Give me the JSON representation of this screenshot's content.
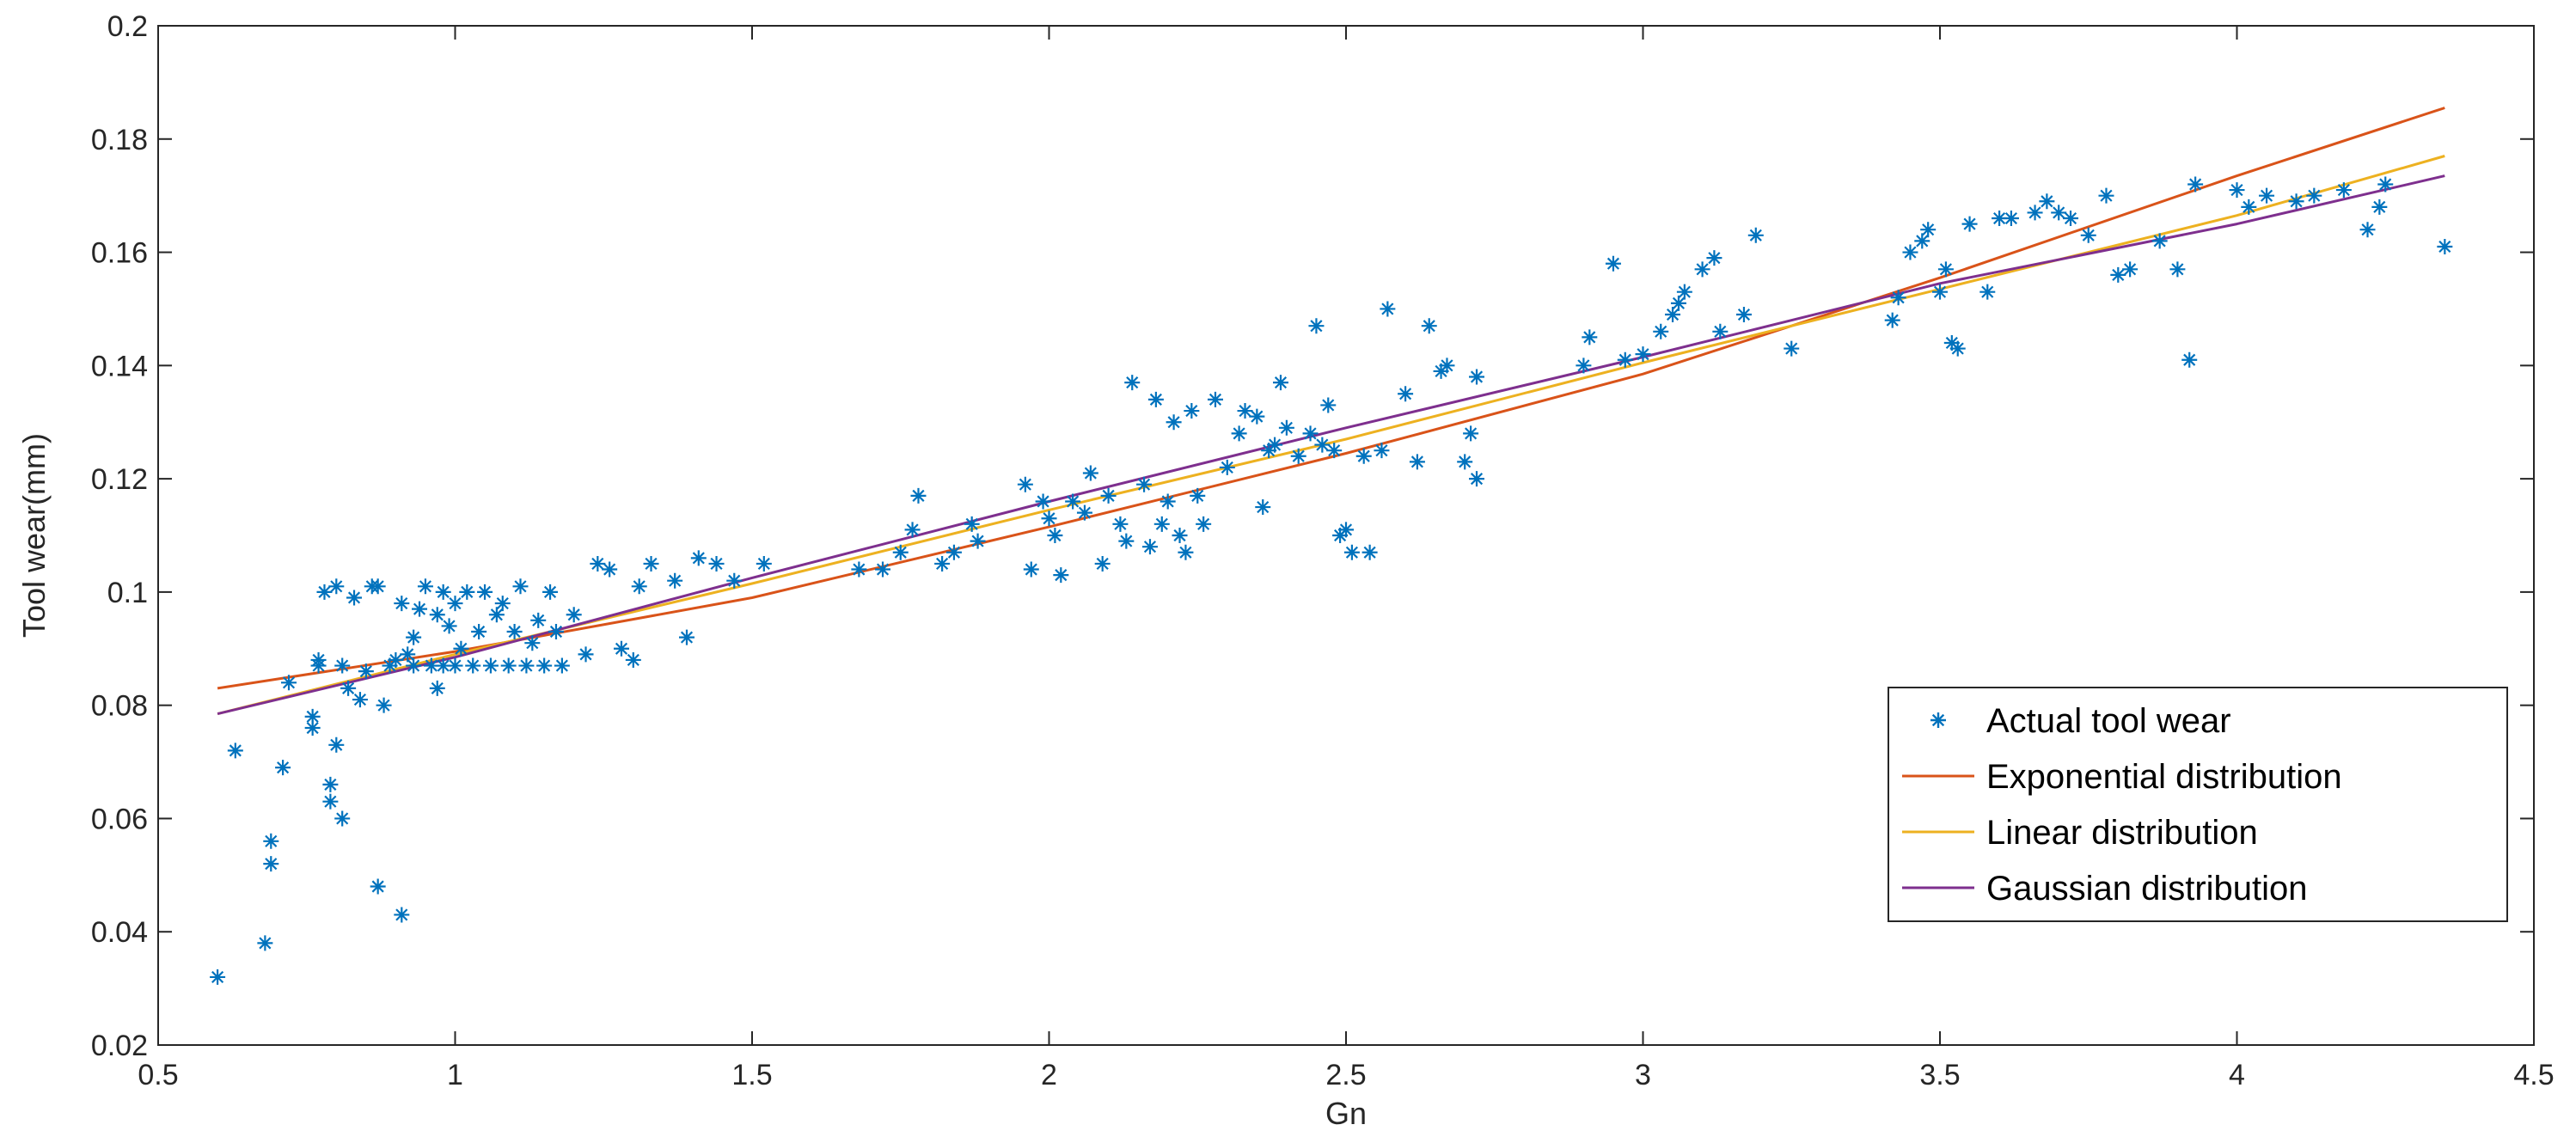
{
  "chart_data": {
    "type": "scatter",
    "title": "",
    "xlabel": "Gn",
    "ylabel": "Tool wear(mm)",
    "xlim": [
      0.5,
      4.5
    ],
    "ylim": [
      0.02,
      0.2
    ],
    "xticks": [
      "0.5",
      "1",
      "1.5",
      "2",
      "2.5",
      "3",
      "3.5",
      "4",
      "4.5"
    ],
    "yticks": [
      "0.02",
      "0.04",
      "0.06",
      "0.08",
      "0.1",
      "0.12",
      "0.14",
      "0.16",
      "0.18",
      "0.2"
    ],
    "grid": false,
    "legend_position": "bottom-right",
    "colors": {
      "actual": "#0072BD",
      "exponential": "#D95319",
      "linear": "#EDB120",
      "gaussian": "#7E2F8E",
      "axes": "#262626"
    },
    "series": [
      {
        "name": "Actual tool wear",
        "kind": "scatter",
        "marker": "star",
        "points": [
          [
            0.6,
            0.032
          ],
          [
            0.63,
            0.072
          ],
          [
            0.68,
            0.038
          ],
          [
            0.69,
            0.052
          ],
          [
            0.69,
            0.056
          ],
          [
            0.71,
            0.069
          ],
          [
            0.72,
            0.084
          ],
          [
            0.76,
            0.076
          ],
          [
            0.76,
            0.078
          ],
          [
            0.77,
            0.087
          ],
          [
            0.77,
            0.088
          ],
          [
            0.78,
            0.1
          ],
          [
            0.79,
            0.063
          ],
          [
            0.79,
            0.066
          ],
          [
            0.8,
            0.073
          ],
          [
            0.8,
            0.101
          ],
          [
            0.81,
            0.06
          ],
          [
            0.81,
            0.087
          ],
          [
            0.82,
            0.083
          ],
          [
            0.83,
            0.099
          ],
          [
            0.84,
            0.081
          ],
          [
            0.85,
            0.086
          ],
          [
            0.86,
            0.101
          ],
          [
            0.87,
            0.048
          ],
          [
            0.87,
            0.101
          ],
          [
            0.88,
            0.08
          ],
          [
            0.89,
            0.087
          ],
          [
            0.9,
            0.088
          ],
          [
            0.91,
            0.043
          ],
          [
            0.91,
            0.098
          ],
          [
            0.92,
            0.089
          ],
          [
            0.93,
            0.092
          ],
          [
            0.93,
            0.087
          ],
          [
            0.94,
            0.097
          ],
          [
            0.95,
            0.101
          ],
          [
            0.96,
            0.087
          ],
          [
            0.97,
            0.083
          ],
          [
            0.97,
            0.096
          ],
          [
            0.98,
            0.1
          ],
          [
            0.98,
            0.087
          ],
          [
            0.99,
            0.094
          ],
          [
            1.0,
            0.098
          ],
          [
            1.0,
            0.087
          ],
          [
            1.01,
            0.09
          ],
          [
            1.02,
            0.1
          ],
          [
            1.03,
            0.087
          ],
          [
            1.04,
            0.093
          ],
          [
            1.05,
            0.1
          ],
          [
            1.06,
            0.087
          ],
          [
            1.07,
            0.096
          ],
          [
            1.08,
            0.098
          ],
          [
            1.09,
            0.087
          ],
          [
            1.1,
            0.093
          ],
          [
            1.11,
            0.101
          ],
          [
            1.12,
            0.087
          ],
          [
            1.13,
            0.091
          ],
          [
            1.14,
            0.095
          ],
          [
            1.15,
            0.087
          ],
          [
            1.16,
            0.1
          ],
          [
            1.17,
            0.093
          ],
          [
            1.18,
            0.087
          ],
          [
            1.2,
            0.096
          ],
          [
            1.22,
            0.089
          ],
          [
            1.24,
            0.105
          ],
          [
            1.26,
            0.104
          ],
          [
            1.28,
            0.09
          ],
          [
            1.3,
            0.088
          ],
          [
            1.31,
            0.101
          ],
          [
            1.33,
            0.105
          ],
          [
            1.37,
            0.102
          ],
          [
            1.39,
            0.092
          ],
          [
            1.41,
            0.106
          ],
          [
            1.44,
            0.105
          ],
          [
            1.47,
            0.102
          ],
          [
            1.52,
            0.105
          ],
          [
            1.68,
            0.104
          ],
          [
            1.72,
            0.104
          ],
          [
            1.75,
            0.107
          ],
          [
            1.77,
            0.111
          ],
          [
            1.78,
            0.117
          ],
          [
            1.82,
            0.105
          ],
          [
            1.84,
            0.107
          ],
          [
            1.87,
            0.112
          ],
          [
            1.88,
            0.109
          ],
          [
            1.96,
            0.119
          ],
          [
            1.97,
            0.104
          ],
          [
            1.99,
            0.116
          ],
          [
            2.0,
            0.113
          ],
          [
            2.01,
            0.11
          ],
          [
            2.02,
            0.103
          ],
          [
            2.04,
            0.116
          ],
          [
            2.06,
            0.114
          ],
          [
            2.07,
            0.121
          ],
          [
            2.09,
            0.105
          ],
          [
            2.1,
            0.117
          ],
          [
            2.12,
            0.112
          ],
          [
            2.13,
            0.109
          ],
          [
            2.14,
            0.137
          ],
          [
            2.16,
            0.119
          ],
          [
            2.17,
            0.108
          ],
          [
            2.18,
            0.134
          ],
          [
            2.19,
            0.112
          ],
          [
            2.2,
            0.116
          ],
          [
            2.21,
            0.13
          ],
          [
            2.22,
            0.11
          ],
          [
            2.23,
            0.107
          ],
          [
            2.24,
            0.132
          ],
          [
            2.25,
            0.117
          ],
          [
            2.26,
            0.112
          ],
          [
            2.28,
            0.134
          ],
          [
            2.3,
            0.122
          ],
          [
            2.32,
            0.128
          ],
          [
            2.33,
            0.132
          ],
          [
            2.35,
            0.131
          ],
          [
            2.36,
            0.115
          ],
          [
            2.37,
            0.125
          ],
          [
            2.38,
            0.126
          ],
          [
            2.39,
            0.137
          ],
          [
            2.4,
            0.129
          ],
          [
            2.42,
            0.124
          ],
          [
            2.44,
            0.128
          ],
          [
            2.45,
            0.147
          ],
          [
            2.46,
            0.126
          ],
          [
            2.47,
            0.133
          ],
          [
            2.48,
            0.125
          ],
          [
            2.49,
            0.11
          ],
          [
            2.5,
            0.111
          ],
          [
            2.51,
            0.107
          ],
          [
            2.53,
            0.124
          ],
          [
            2.54,
            0.107
          ],
          [
            2.56,
            0.125
          ],
          [
            2.57,
            0.15
          ],
          [
            2.6,
            0.135
          ],
          [
            2.62,
            0.123
          ],
          [
            2.64,
            0.147
          ],
          [
            2.66,
            0.139
          ],
          [
            2.67,
            0.14
          ],
          [
            2.7,
            0.123
          ],
          [
            2.71,
            0.128
          ],
          [
            2.72,
            0.12
          ],
          [
            2.72,
            0.138
          ],
          [
            2.9,
            0.14
          ],
          [
            2.91,
            0.145
          ],
          [
            2.95,
            0.158
          ],
          [
            2.97,
            0.141
          ],
          [
            3.0,
            0.142
          ],
          [
            3.03,
            0.146
          ],
          [
            3.05,
            0.149
          ],
          [
            3.06,
            0.151
          ],
          [
            3.07,
            0.153
          ],
          [
            3.1,
            0.157
          ],
          [
            3.12,
            0.159
          ],
          [
            3.13,
            0.146
          ],
          [
            3.17,
            0.149
          ],
          [
            3.19,
            0.163
          ],
          [
            3.25,
            0.143
          ],
          [
            3.42,
            0.148
          ],
          [
            3.43,
            0.152
          ],
          [
            3.45,
            0.16
          ],
          [
            3.47,
            0.162
          ],
          [
            3.48,
            0.164
          ],
          [
            3.5,
            0.153
          ],
          [
            3.51,
            0.157
          ],
          [
            3.52,
            0.144
          ],
          [
            3.53,
            0.143
          ],
          [
            3.55,
            0.165
          ],
          [
            3.58,
            0.153
          ],
          [
            3.6,
            0.166
          ],
          [
            3.62,
            0.166
          ],
          [
            3.66,
            0.167
          ],
          [
            3.68,
            0.169
          ],
          [
            3.7,
            0.167
          ],
          [
            3.72,
            0.166
          ],
          [
            3.75,
            0.163
          ],
          [
            3.78,
            0.17
          ],
          [
            3.8,
            0.156
          ],
          [
            3.82,
            0.157
          ],
          [
            3.87,
            0.162
          ],
          [
            3.9,
            0.157
          ],
          [
            3.92,
            0.141
          ],
          [
            3.93,
            0.172
          ],
          [
            4.0,
            0.171
          ],
          [
            4.02,
            0.168
          ],
          [
            4.05,
            0.17
          ],
          [
            4.1,
            0.169
          ],
          [
            4.13,
            0.17
          ],
          [
            4.18,
            0.171
          ],
          [
            4.22,
            0.164
          ],
          [
            4.24,
            0.168
          ],
          [
            4.25,
            0.172
          ],
          [
            4.35,
            0.161
          ]
        ]
      },
      {
        "name": "Exponential distribution",
        "kind": "line",
        "x": [
          0.6,
          1.0,
          1.5,
          2.0,
          2.5,
          3.0,
          3.5,
          4.0,
          4.35
        ],
        "y": [
          0.083,
          0.0895,
          0.099,
          0.1115,
          0.1245,
          0.1385,
          0.1555,
          0.1735,
          0.1855
        ]
      },
      {
        "name": "Linear distribution",
        "kind": "line",
        "x": [
          0.6,
          1.0,
          1.5,
          2.0,
          2.5,
          3.0,
          3.5,
          4.0,
          4.35
        ],
        "y": [
          0.0785,
          0.089,
          0.1015,
          0.1145,
          0.127,
          0.1405,
          0.1535,
          0.1665,
          0.177
        ]
      },
      {
        "name": "Gaussian distribution",
        "kind": "line",
        "x": [
          0.6,
          1.0,
          1.5,
          2.0,
          2.5,
          3.0,
          3.5,
          4.0,
          4.35
        ],
        "y": [
          0.0785,
          0.0885,
          0.1025,
          0.116,
          0.129,
          0.1415,
          0.1545,
          0.165,
          0.1735
        ]
      }
    ]
  }
}
